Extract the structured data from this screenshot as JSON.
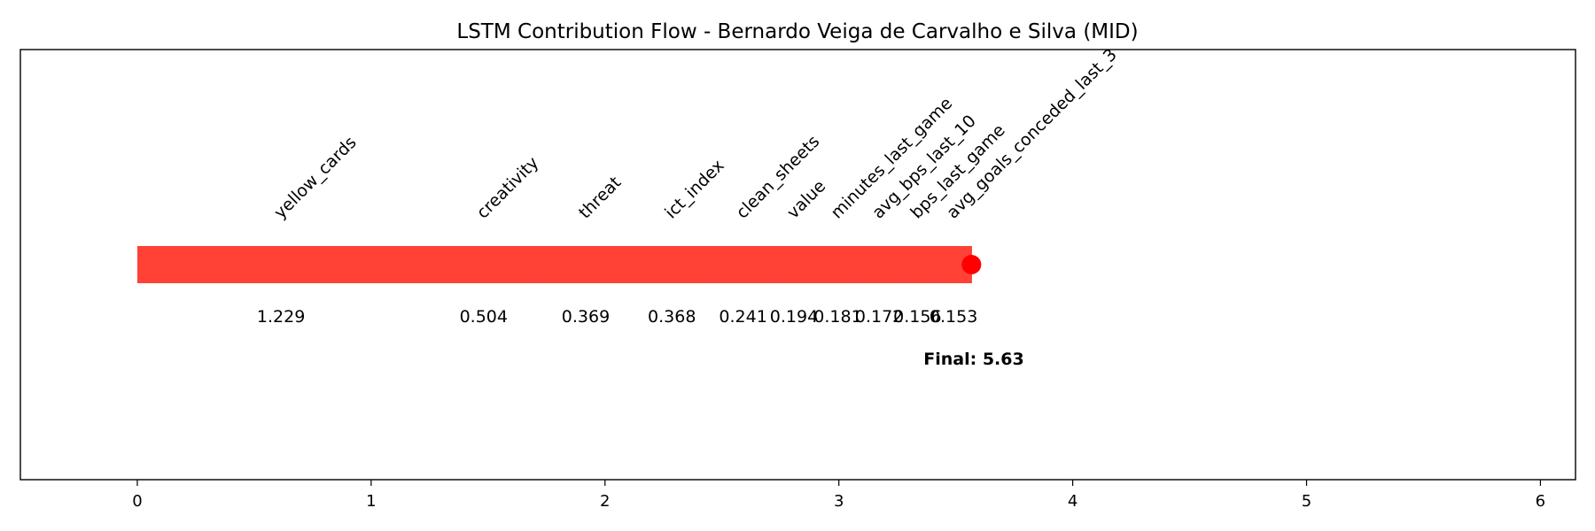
{
  "chart_data": {
    "type": "bar",
    "title": "LSTM Contribution Flow - Bernardo Veiga de Carvalho e Silva (MID)",
    "xlabel": "",
    "ylabel": "",
    "xlim": [
      -0.5,
      6.15
    ],
    "x_ticks": [
      0,
      1,
      2,
      3,
      4,
      5,
      6
    ],
    "grid": false,
    "bar_color": "#ff4136",
    "marker_color": "#ff0000",
    "segments": [
      {
        "feature": "yellow_cards",
        "value": 1.229,
        "value_label": "1.229"
      },
      {
        "feature": "creativity",
        "value": 0.504,
        "value_label": "0.504"
      },
      {
        "feature": "threat",
        "value": 0.369,
        "value_label": "0.369"
      },
      {
        "feature": "ict_index",
        "value": 0.368,
        "value_label": "0.368"
      },
      {
        "feature": "clean_sheets",
        "value": 0.241,
        "value_label": "0.241"
      },
      {
        "feature": "value",
        "value": 0.194,
        "value_label": "0.194"
      },
      {
        "feature": "minutes_last_game",
        "value": 0.181,
        "value_label": "0.181"
      },
      {
        "feature": "avg_bps_last_10",
        "value": 0.172,
        "value_label": "0.172"
      },
      {
        "feature": "bps_last_game",
        "value": 0.156,
        "value_label": "0.156"
      },
      {
        "feature": "avg_goals_conceded_last_3",
        "value": 0.153,
        "value_label": "0.153"
      }
    ],
    "final_label": "Final: 5.63"
  }
}
